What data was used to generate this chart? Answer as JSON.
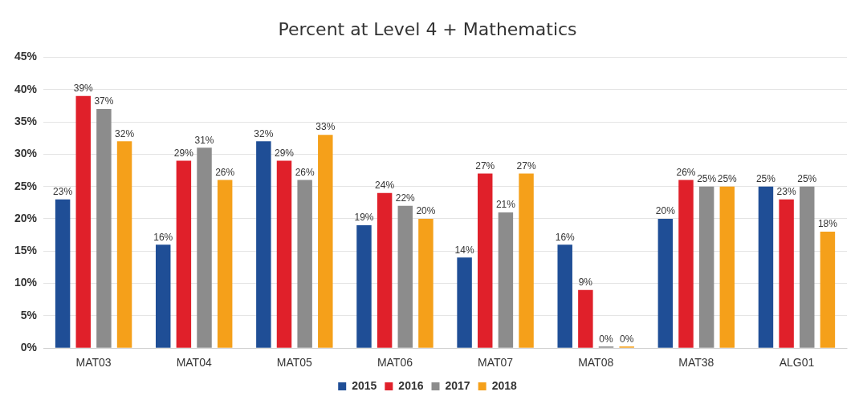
{
  "chart_data": {
    "type": "bar",
    "title": "Percent at Level 4 + Mathematics",
    "categories": [
      "MAT03",
      "MAT04",
      "MAT05",
      "MAT06",
      "MAT07",
      "MAT08",
      "MAT38",
      "ALG01"
    ],
    "series": [
      {
        "name": "2015",
        "color": "#1f4e96",
        "values": [
          23,
          16,
          32,
          19,
          14,
          16,
          20,
          25
        ],
        "value_labels": [
          "23%",
          "16%",
          "32%",
          "19%",
          "14%",
          "16%",
          "20%",
          "25%"
        ]
      },
      {
        "name": "2016",
        "color": "#e0202a",
        "values": [
          39,
          29,
          29,
          24,
          27,
          9,
          26,
          23
        ],
        "value_labels": [
          "39%",
          "29%",
          "29%",
          "24%",
          "27%",
          "9%",
          "26%",
          "23%"
        ]
      },
      {
        "name": "2017",
        "color": "#8c8c8c",
        "values": [
          37,
          31,
          26,
          22,
          21,
          0,
          25,
          25
        ],
        "value_labels": [
          "37%",
          "31%",
          "26%",
          "22%",
          "21%",
          "0%",
          "25%",
          "25%"
        ]
      },
      {
        "name": "2018",
        "color": "#f5a01a",
        "values": [
          32,
          26,
          33,
          20,
          27,
          0,
          25,
          18
        ],
        "value_labels": [
          "32%",
          "26%",
          "33%",
          "20%",
          "27%",
          "0%",
          "25%",
          "18%"
        ]
      }
    ],
    "ylim": [
      0,
      45
    ],
    "yticks": [
      {
        "value": 0,
        "label": "0%"
      },
      {
        "value": 5,
        "label": "5%"
      },
      {
        "value": 10,
        "label": "10%"
      },
      {
        "value": 15,
        "label": "15%"
      },
      {
        "value": 20,
        "label": "20%"
      },
      {
        "value": 25,
        "label": "25%"
      },
      {
        "value": 30,
        "label": "30%"
      },
      {
        "value": 35,
        "label": "35%"
      },
      {
        "value": 40,
        "label": "40%"
      },
      {
        "value": 45,
        "label": "45%"
      }
    ],
    "grid": "y",
    "legend": "bottom"
  }
}
